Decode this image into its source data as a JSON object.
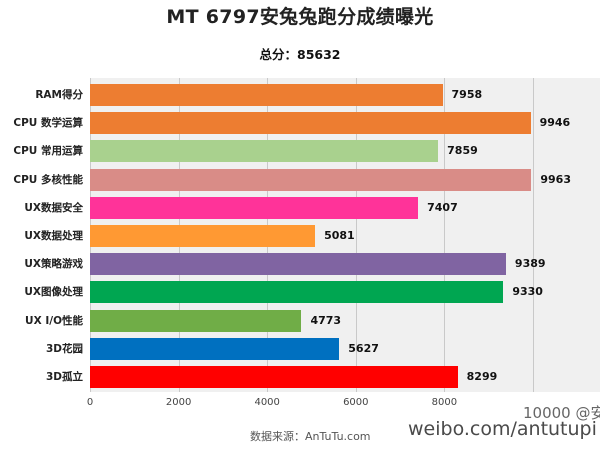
{
  "title": "MT 6797安兔兔跑分成绩曝光",
  "subtitle": "总分：85632",
  "source": "数据来源：AnTuTu.com",
  "watermark": "weibo.com/antutupi",
  "watermark_top": "10000 @安",
  "chart_data": {
    "type": "bar",
    "orientation": "horizontal",
    "title": "MT 6797安兔兔跑分成绩曝光",
    "subtitle": "总分：85632",
    "xlabel": "",
    "ylabel": "",
    "xlim": [
      0,
      10000
    ],
    "grid": true,
    "ticks": [
      0,
      2000,
      4000,
      6000,
      8000,
      10000
    ],
    "tick_labels": [
      "0",
      "2000",
      "4000",
      "6000",
      "8000",
      ""
    ],
    "categories": [
      "RAM得分",
      "CPU 数学运算",
      "CPU 常用运算",
      "CPU 多核性能",
      "UX数据安全",
      "UX数据处理",
      "UX策略游戏",
      "UX图像处理",
      "UX I/O性能",
      "3D花园",
      "3D孤立"
    ],
    "values": [
      7958,
      9946,
      7859,
      9963,
      7407,
      5081,
      9389,
      9330,
      4773,
      5627,
      8299
    ],
    "colors": [
      "#ED7D31",
      "#ED7D31",
      "#A9D18E",
      "#D98C87",
      "#FF3399",
      "#FF9933",
      "#8064A2",
      "#00A651",
      "#70AD47",
      "#0070C0",
      "#FF0000"
    ]
  }
}
